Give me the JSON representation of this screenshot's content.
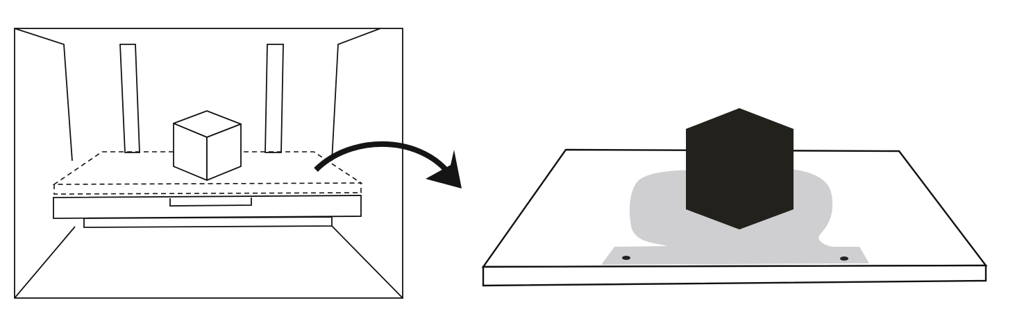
{
  "colors": {
    "background": "#ffffff",
    "stroke": "#111111",
    "cube_fill": "#23211c",
    "residue": "#cfcfd1"
  },
  "icons": {
    "transition": "curved-arrow-right-icon",
    "object": "cube-icon"
  }
}
